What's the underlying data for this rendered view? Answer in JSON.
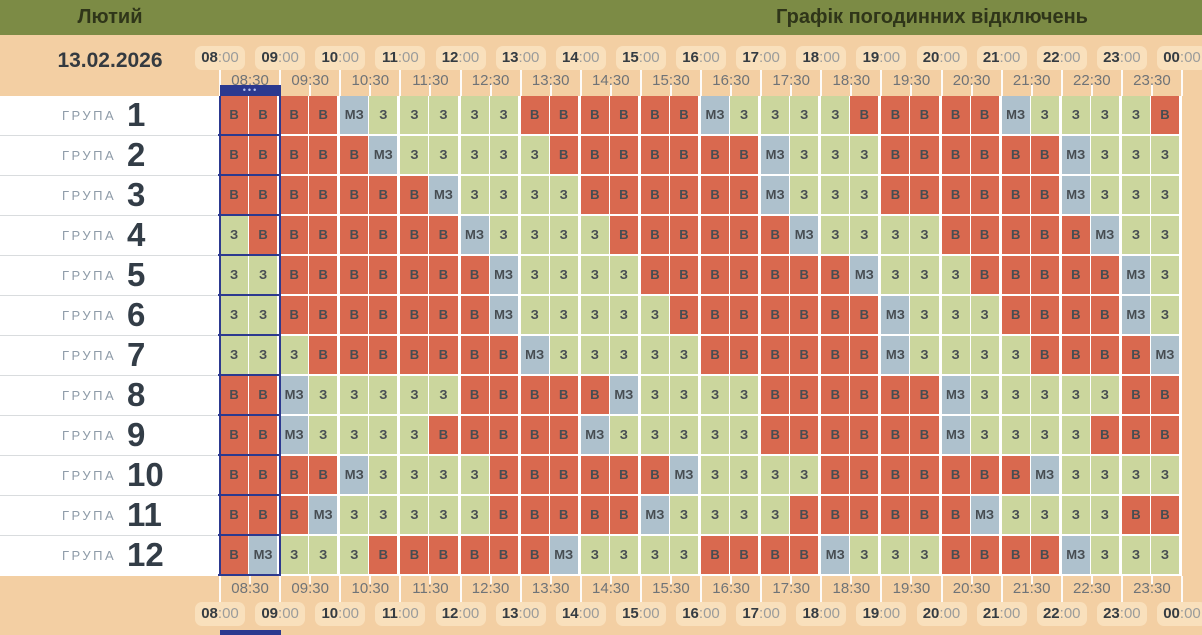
{
  "header": {
    "month": "Лютий",
    "title": "Графік погодинних відключень"
  },
  "date": "13.02.2026",
  "time_axis": {
    "hours": [
      "08:00",
      "09:00",
      "10:00",
      "11:00",
      "12:00",
      "13:00",
      "14:00",
      "15:00",
      "16:00",
      "17:00",
      "18:00",
      "19:00",
      "20:00",
      "21:00",
      "22:00",
      "23:00",
      "00:00"
    ],
    "half_hours": [
      "08:30",
      "09:30",
      "10:30",
      "11:30",
      "12:30",
      "13:30",
      "14:30",
      "15:30",
      "16:30",
      "17:30",
      "18:30",
      "19:30",
      "20:30",
      "21:30",
      "22:30",
      "23:30"
    ]
  },
  "group_word": "ГРУПА",
  "states": {
    "В": {
      "meaning": "outage-off",
      "color": "#d9694f"
    },
    "З": {
      "meaning": "powered-on",
      "color": "#cbd69d"
    },
    "МЗ": {
      "meaning": "maybe-powered",
      "color": "#aec1cd"
    }
  },
  "highlight": {
    "range": "08:00-09:00",
    "dots": "•••",
    "color": "#2c398f"
  },
  "groups": [
    {
      "number": "1",
      "cells": [
        "В",
        "В",
        "В",
        "В",
        "МЗ",
        "З",
        "З",
        "З",
        "З",
        "З",
        "В",
        "В",
        "В",
        "В",
        "В",
        "В",
        "МЗ",
        "З",
        "З",
        "З",
        "З",
        "В",
        "В",
        "В",
        "В",
        "В",
        "МЗ",
        "З",
        "З",
        "З",
        "З",
        "В"
      ]
    },
    {
      "number": "2",
      "cells": [
        "В",
        "В",
        "В",
        "В",
        "В",
        "МЗ",
        "З",
        "З",
        "З",
        "З",
        "З",
        "В",
        "В",
        "В",
        "В",
        "В",
        "В",
        "В",
        "МЗ",
        "З",
        "З",
        "З",
        "В",
        "В",
        "В",
        "В",
        "В",
        "В",
        "МЗ",
        "З",
        "З",
        "З"
      ]
    },
    {
      "number": "3",
      "cells": [
        "В",
        "В",
        "В",
        "В",
        "В",
        "В",
        "В",
        "МЗ",
        "З",
        "З",
        "З",
        "З",
        "В",
        "В",
        "В",
        "В",
        "В",
        "В",
        "МЗ",
        "З",
        "З",
        "З",
        "В",
        "В",
        "В",
        "В",
        "В",
        "В",
        "МЗ",
        "З",
        "З",
        "З"
      ]
    },
    {
      "number": "4",
      "cells": [
        "З",
        "В",
        "В",
        "В",
        "В",
        "В",
        "В",
        "В",
        "МЗ",
        "З",
        "З",
        "З",
        "З",
        "В",
        "В",
        "В",
        "В",
        "В",
        "В",
        "МЗ",
        "З",
        "З",
        "З",
        "З",
        "В",
        "В",
        "В",
        "В",
        "В",
        "МЗ",
        "З",
        "З"
      ]
    },
    {
      "number": "5",
      "cells": [
        "З",
        "З",
        "В",
        "В",
        "В",
        "В",
        "В",
        "В",
        "В",
        "МЗ",
        "З",
        "З",
        "З",
        "З",
        "В",
        "В",
        "В",
        "В",
        "В",
        "В",
        "В",
        "МЗ",
        "З",
        "З",
        "З",
        "В",
        "В",
        "В",
        "В",
        "В",
        "МЗ",
        "З"
      ]
    },
    {
      "number": "6",
      "cells": [
        "З",
        "З",
        "В",
        "В",
        "В",
        "В",
        "В",
        "В",
        "В",
        "МЗ",
        "З",
        "З",
        "З",
        "З",
        "З",
        "В",
        "В",
        "В",
        "В",
        "В",
        "В",
        "В",
        "МЗ",
        "З",
        "З",
        "З",
        "В",
        "В",
        "В",
        "В",
        "МЗ",
        "З"
      ]
    },
    {
      "number": "7",
      "cells": [
        "З",
        "З",
        "З",
        "В",
        "В",
        "В",
        "В",
        "В",
        "В",
        "В",
        "МЗ",
        "З",
        "З",
        "З",
        "З",
        "З",
        "В",
        "В",
        "В",
        "В",
        "В",
        "В",
        "МЗ",
        "З",
        "З",
        "З",
        "З",
        "В",
        "В",
        "В",
        "В",
        "МЗ"
      ]
    },
    {
      "number": "8",
      "cells": [
        "В",
        "В",
        "МЗ",
        "З",
        "З",
        "З",
        "З",
        "З",
        "В",
        "В",
        "В",
        "В",
        "В",
        "МЗ",
        "З",
        "З",
        "З",
        "З",
        "В",
        "В",
        "В",
        "В",
        "В",
        "В",
        "МЗ",
        "З",
        "З",
        "З",
        "З",
        "З",
        "В",
        "В"
      ]
    },
    {
      "number": "9",
      "cells": [
        "В",
        "В",
        "МЗ",
        "З",
        "З",
        "З",
        "З",
        "В",
        "В",
        "В",
        "В",
        "В",
        "МЗ",
        "З",
        "З",
        "З",
        "З",
        "З",
        "В",
        "В",
        "В",
        "В",
        "В",
        "В",
        "МЗ",
        "З",
        "З",
        "З",
        "З",
        "В",
        "В",
        "В"
      ]
    },
    {
      "number": "10",
      "cells": [
        "В",
        "В",
        "В",
        "В",
        "МЗ",
        "З",
        "З",
        "З",
        "З",
        "В",
        "В",
        "В",
        "В",
        "В",
        "В",
        "МЗ",
        "З",
        "З",
        "З",
        "З",
        "В",
        "В",
        "В",
        "В",
        "В",
        "В",
        "В",
        "МЗ",
        "З",
        "З",
        "З",
        "З"
      ]
    },
    {
      "number": "11",
      "cells": [
        "В",
        "В",
        "В",
        "МЗ",
        "З",
        "З",
        "З",
        "З",
        "З",
        "В",
        "В",
        "В",
        "В",
        "В",
        "МЗ",
        "З",
        "З",
        "З",
        "З",
        "В",
        "В",
        "В",
        "В",
        "В",
        "В",
        "МЗ",
        "З",
        "З",
        "З",
        "З",
        "В",
        "В"
      ]
    },
    {
      "number": "12",
      "cells": [
        "В",
        "МЗ",
        "З",
        "З",
        "З",
        "В",
        "В",
        "В",
        "В",
        "В",
        "В",
        "МЗ",
        "З",
        "З",
        "З",
        "З",
        "В",
        "В",
        "В",
        "В",
        "МЗ",
        "З",
        "З",
        "З",
        "В",
        "В",
        "В",
        "В",
        "МЗ",
        "З",
        "З",
        "З"
      ]
    }
  ]
}
